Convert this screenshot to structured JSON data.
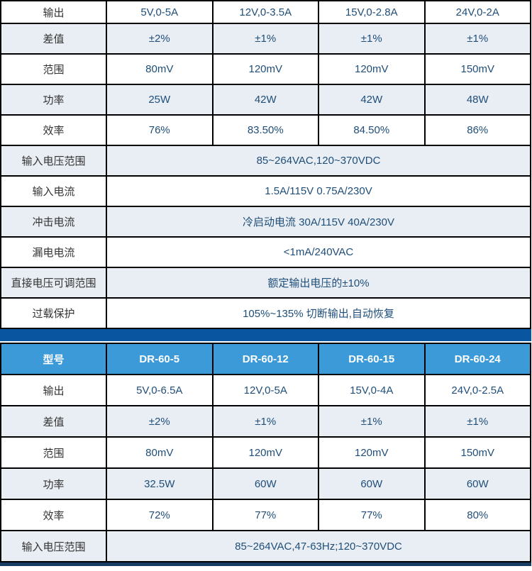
{
  "colors": {
    "header_bg": "#3d9ad8",
    "header_text": "#ffffff",
    "divider_bar": "#0a55a0",
    "bottom_bar": "#173c64",
    "shaded_row_bg": "#e9eef4",
    "value_text": "#1f4e79",
    "label_text": "#333333",
    "border": "#000000"
  },
  "table1": {
    "rows": [
      {
        "label": "输出",
        "values": [
          "5V,0-5A",
          "12V,0-3.5A",
          "15V,0-2.8A",
          "24V,0-2A"
        ]
      },
      {
        "label": "差值",
        "values": [
          "±2%",
          "±1%",
          "±1%",
          "±1%"
        ]
      },
      {
        "label": "范围",
        "values": [
          "80mV",
          "120mV",
          "120mV",
          "150mV"
        ]
      },
      {
        "label": "功率",
        "values": [
          "25W",
          "42W",
          "42W",
          "48W"
        ]
      },
      {
        "label": "效率",
        "values": [
          "76%",
          "83.50%",
          "84.50%",
          "86%"
        ]
      },
      {
        "label": "输入电压范围",
        "merged": "85~264VAC,120~370VDC"
      },
      {
        "label": "输入电流",
        "merged": "1.5A/115V 0.75A/230V"
      },
      {
        "label": "冲击电流",
        "merged": "冷启动电流 30A/115V 40A/230V"
      },
      {
        "label": "漏电电流",
        "merged": "<1mA/240VAC"
      },
      {
        "label": "直接电压可调范围",
        "merged": "额定输出电压的±10%"
      },
      {
        "label": "过载保护",
        "merged": "105%~135% 切断输出,自动恢复"
      }
    ]
  },
  "table2": {
    "header": {
      "label": "型号",
      "models": [
        "DR-60-5",
        "DR-60-12",
        "DR-60-15",
        "DR-60-24"
      ]
    },
    "rows": [
      {
        "label": "输出",
        "values": [
          "5V,0-6.5A",
          "12V,0-5A",
          "15V,0-4A",
          "24V,0-2.5A"
        ]
      },
      {
        "label": "差值",
        "values": [
          "±2%",
          "±1%",
          "±1%",
          "±1%"
        ]
      },
      {
        "label": "范围",
        "values": [
          "80mV",
          "120mV",
          "120mV",
          "150mV"
        ]
      },
      {
        "label": "功率",
        "values": [
          "32.5W",
          "60W",
          "60W",
          "60W"
        ]
      },
      {
        "label": "效率",
        "values": [
          "72%",
          "77%",
          "77%",
          "80%"
        ]
      },
      {
        "label": "输入电压范围",
        "merged": "85~264VAC,47-63Hz;120~370VDC"
      }
    ]
  }
}
